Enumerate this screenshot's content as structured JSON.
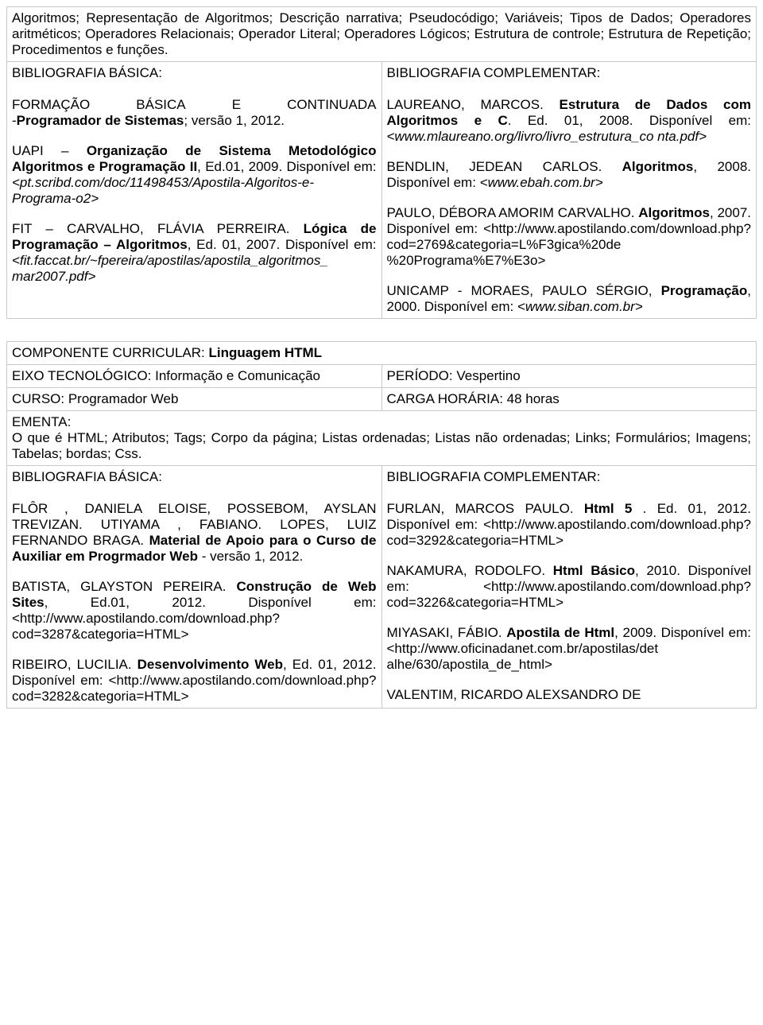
{
  "t1": {
    "intro": "Algoritmos; Representação de Algoritmos; Descrição narrativa; Pseudocódigo; Variáveis; Tipos de Dados; Operadores aritméticos; Operadores Relacionais; Operador Literal; Operadores Lógicos; Estrutura de controle; Estrutura de Repetição; Procedimentos e funções.",
    "bbh": "BIBLIOGRAFIA BÁSICA:",
    "bch": "BIBLIOGRAFIA COMPLEMENTAR:",
    "bb1_w1": "FORMAÇÃO",
    "bb1_w2": "BÁSICA",
    "bb1_w3": "E",
    "bb1_w4": "CONTINUADA",
    "bb1_l2a": "-",
    "bb1_l2b": "Programador de Sistemas",
    "bb1_l2c": "; versão 1, 2012.",
    "bb2_l1a": "UAPI – ",
    "bb2_l1b": "Organização de Sistema Metodológico Algoritmos e Programação II",
    "bb2_l1c": ", Ed.01, 2009. Disponível em: ",
    "bb2_l1d": "<pt.scribd.com/doc/11498453/Apostila-Algoritos-e-Programa-o2>",
    "bb3_l1a": "FIT – CARVALHO, FLÁVIA PERREIRA. ",
    "bb3_l1b": "Lógica de Programação – Algoritmos",
    "bb3_l1c": ", Ed. 01, 2007. Disponível em: ",
    "bb3_l1d": "<fit.faccat.br/~fpereira/apostilas/apostila_algoritmos_ mar2007.pdf>",
    "bc1a": "LAUREANO, MARCOS. ",
    "bc1b": "Estrutura de Dados com Algoritmos e C",
    "bc1c": ". Ed. 01, 2008. Disponível em: ",
    "bc1d": "<www.mlaureano.org/livro/livro_estrutura_co nta.pdf>",
    "bc2a": "BENDLIN, JEDEAN CARLOS. ",
    "bc2b": "Algoritmos",
    "bc2c": ", 2008. Disponível em: ",
    "bc2d": "<www.ebah.com.br>",
    "bc3a": "PAULO, DÉBORA AMORIM CARVALHO. ",
    "bc3b": "Algoritmos",
    "bc3c": ", 2007. Disponível em: <http://www.apostilando.com/download.php?cod=2769&categoria=L%F3gica%20de %20Programa%E7%E3o>",
    "bc4a": "UNICAMP - MORAES, PAULO SÉRGIO, ",
    "bc4b": "Programação",
    "bc4c": ", 2000. Disponível em: ",
    "bc4d": "<www.siban.com.br>"
  },
  "t2": {
    "r1a": "COMPONENTE CURRICULAR: ",
    "r1b": "Linguagem HTML",
    "r2a": "EIXO TECNOLÓGICO: Informação e Comunicação",
    "r2b": "PERÍODO: Vespertino",
    "r3a": "CURSO: Programador Web",
    "r3b": "CARGA HORÁRIA: 48 horas",
    "r4h": "EMENTA:",
    "r4t": "O que é HTML; Atributos; Tags; Corpo da página; Listas ordenadas; Listas não ordenadas; Links; Formulários; Imagens; Tabelas; bordas; Css.",
    "bbh": "BIBLIOGRAFIA BÁSICA:",
    "bch": "BIBLIOGRAFIA COMPLEMENTAR:",
    "bb1a": "FLÔR , DANIELA ELOISE, POSSEBOM, AYSLAN TREVIZAN. UTIYAMA , FABIANO. LOPES, LUIZ FERNANDO BRAGA. ",
    "bb1b": "Material de Apoio para o Curso de Auxiliar em Progrmador Web",
    "bb1c": " - versão 1, 2012.",
    "bb2a": "BATISTA, GLAYSTON PEREIRA. ",
    "bb2b": "Construção de Web Sites",
    "bb2c": ", Ed.01, 2012. Disponível em: <http://www.apostilando.com/download.php?cod=3287&categoria=HTML>",
    "bb3a": "RIBEIRO, LUCILIA. ",
    "bb3b": "Desenvolvimento Web",
    "bb3c": ", Ed. 01, 2012. Disponível em: <http://www.apostilando.com/download.php?cod=3282&categoria=HTML>",
    "bc1a": "FURLAN, MARCOS PAULO. ",
    "bc1b": "Html 5 ",
    "bc1c": ". Ed. 01, 2012. Disponível em: <http://www.apostilando.com/download.php?cod=3292&categoria=HTML>",
    "bc2a": "NAKAMURA, RODOLFO. ",
    "bc2b": "Html Básico",
    "bc2c": ", 2010. Disponível em: <http://www.apostilando.com/download.php?cod=3226&categoria=HTML>",
    "bc3a": "MIYASAKI, FÁBIO. ",
    "bc3b": "Apostila de Html",
    "bc3c": ", 2009. Disponível em: <http://www.oficinadanet.com.br/apostilas/det alhe/630/apostila_de_html>",
    "bc4a": "VALENTIM, RICARDO ALEXSANDRO DE"
  }
}
